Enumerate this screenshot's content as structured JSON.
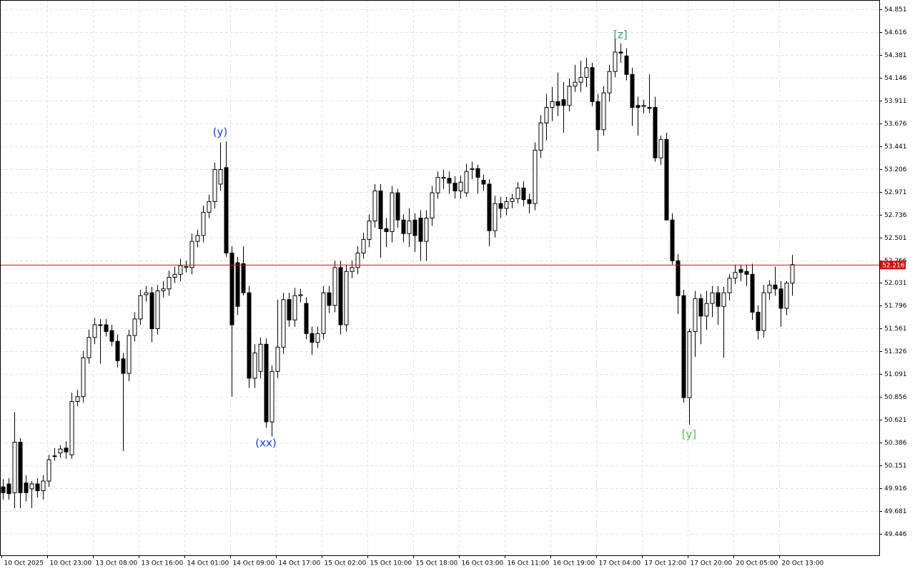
{
  "chart_data": {
    "type": "candlestick",
    "ylim": [
      49.225,
      54.947
    ],
    "yticks": [
      54.851,
      54.616,
      54.381,
      54.146,
      53.911,
      53.676,
      53.441,
      53.206,
      52.971,
      52.736,
      52.501,
      52.266,
      52.031,
      51.796,
      51.561,
      51.326,
      51.091,
      50.856,
      50.621,
      50.386,
      50.151,
      49.916,
      49.681,
      49.446
    ],
    "grid": true,
    "up_color": "#ffffff",
    "down_color": "#000000",
    "last_price": 52.216,
    "last_price_color": "#d01010",
    "annotations": [
      {
        "text": "(y)",
        "color": "#1a3fd6"
      },
      {
        "text": "(xx)",
        "color": "#1a3fd6"
      },
      {
        "text": "[z]",
        "color": "#2a9d6f"
      },
      {
        "text": "[y]",
        "color": "#4cc94c"
      }
    ],
    "categories": [
      "10 Oct 2025",
      null,
      null,
      null,
      null,
      null,
      null,
      null,
      "10 Oct 23:00",
      null,
      null,
      null,
      null,
      null,
      null,
      null,
      "13 Oct 08:00",
      null,
      null,
      null,
      null,
      null,
      null,
      null,
      "13 Oct 16:00",
      null,
      null,
      null,
      null,
      null,
      null,
      null,
      "14 Oct 01:00",
      null,
      null,
      null,
      null,
      null,
      null,
      null,
      "14 Oct 09:00",
      null,
      null,
      null,
      null,
      null,
      null,
      null,
      "14 Oct 17:00",
      null,
      null,
      null,
      null,
      null,
      null,
      null,
      "15 Oct 02:00",
      null,
      null,
      null,
      null,
      null,
      null,
      null,
      "15 Oct 10:00",
      null,
      null,
      null,
      null,
      null,
      null,
      null,
      "15 Oct 18:00",
      null,
      null,
      null,
      null,
      null,
      null,
      null,
      "16 Oct 03:00",
      null,
      null,
      null,
      null,
      null,
      null,
      null,
      "16 Oct 11:00",
      null,
      null,
      null,
      null,
      null,
      null,
      null,
      "16 Oct 19:00",
      null,
      null,
      null,
      null,
      null,
      null,
      null,
      "17 Oct 04:00",
      null,
      null,
      null,
      null,
      null,
      null,
      null,
      "17 Oct 12:00",
      null,
      null,
      null,
      null,
      null,
      null,
      null,
      "17 Oct 20:00",
      null,
      null,
      null,
      null,
      null,
      null,
      null,
      "20 Oct 05:00",
      null,
      null,
      null,
      null,
      null,
      null,
      null,
      "20 Oct 13:00",
      null,
      null
    ],
    "ohlc": [
      [
        49.93,
        50.01,
        49.8,
        49.87
      ],
      [
        49.96,
        50.02,
        49.8,
        49.86
      ],
      [
        49.87,
        50.7,
        49.71,
        50.39
      ],
      [
        50.39,
        50.43,
        49.71,
        49.87
      ],
      [
        49.97,
        50.05,
        49.78,
        49.87
      ],
      [
        49.91,
        49.99,
        49.71,
        49.96
      ],
      [
        49.96,
        50.02,
        49.82,
        49.89
      ],
      [
        49.89,
        50.05,
        49.8,
        49.99
      ],
      [
        49.99,
        50.26,
        49.93,
        50.21
      ],
      [
        50.25,
        50.33,
        50.2,
        50.25
      ],
      [
        50.28,
        50.36,
        50.23,
        50.32
      ],
      [
        50.33,
        50.4,
        50.22,
        50.29
      ],
      [
        50.26,
        50.9,
        50.22,
        50.81
      ],
      [
        50.81,
        50.93,
        50.76,
        50.86
      ],
      [
        50.86,
        51.33,
        50.8,
        51.26
      ],
      [
        51.26,
        51.55,
        51.2,
        51.47
      ],
      [
        51.47,
        51.67,
        51.4,
        51.6
      ],
      [
        51.6,
        51.66,
        51.2,
        51.6
      ],
      [
        51.6,
        51.66,
        51.48,
        51.53
      ],
      [
        51.54,
        51.6,
        51.38,
        51.43
      ],
      [
        51.43,
        51.5,
        51.16,
        51.23
      ],
      [
        51.25,
        51.31,
        50.3,
        51.1
      ],
      [
        51.1,
        51.55,
        51.02,
        51.49
      ],
      [
        51.49,
        51.73,
        51.43,
        51.66
      ],
      [
        51.66,
        51.96,
        51.6,
        51.9
      ],
      [
        51.91,
        52.0,
        51.84,
        51.93
      ],
      [
        51.93,
        51.99,
        51.42,
        51.56
      ],
      [
        51.56,
        52.01,
        51.5,
        51.95
      ],
      [
        51.95,
        52.05,
        51.88,
        51.97
      ],
      [
        51.97,
        52.16,
        51.9,
        52.09
      ],
      [
        52.09,
        52.2,
        52.03,
        52.12
      ],
      [
        52.12,
        52.28,
        52.05,
        52.21
      ],
      [
        52.19,
        52.26,
        52.14,
        52.2
      ],
      [
        52.19,
        52.54,
        52.12,
        52.46
      ],
      [
        52.46,
        52.58,
        52.4,
        52.52
      ],
      [
        52.52,
        52.83,
        52.45,
        52.76
      ],
      [
        52.76,
        52.94,
        52.7,
        52.87
      ],
      [
        52.87,
        53.27,
        52.8,
        53.2
      ],
      [
        53.05,
        53.48,
        52.98,
        53.2
      ],
      [
        53.22,
        53.49,
        52.3,
        52.34
      ],
      [
        52.34,
        52.41,
        50.86,
        51.6
      ],
      [
        52.24,
        52.3,
        51.7,
        51.79
      ],
      [
        52.23,
        52.41,
        51.9,
        51.93
      ],
      [
        51.93,
        52.0,
        50.95,
        51.05
      ],
      [
        51.05,
        51.4,
        50.95,
        51.31
      ],
      [
        51.12,
        51.47,
        51.05,
        51.4
      ],
      [
        51.4,
        51.46,
        50.54,
        50.6
      ],
      [
        50.6,
        51.18,
        50.45,
        51.12
      ],
      [
        51.12,
        51.86,
        51.05,
        51.37
      ],
      [
        51.37,
        51.93,
        51.3,
        51.86
      ],
      [
        51.86,
        51.93,
        51.58,
        51.65
      ],
      [
        51.65,
        51.98,
        51.58,
        51.9
      ],
      [
        51.9,
        51.97,
        51.83,
        51.91
      ],
      [
        51.82,
        51.88,
        51.45,
        51.51
      ],
      [
        51.51,
        51.58,
        51.29,
        51.42
      ],
      [
        51.42,
        51.58,
        51.36,
        51.51
      ],
      [
        51.51,
        52.0,
        51.45,
        51.93
      ],
      [
        51.93,
        52.0,
        51.72,
        51.8
      ],
      [
        51.8,
        52.26,
        51.73,
        52.19
      ],
      [
        52.19,
        52.26,
        51.5,
        51.6
      ],
      [
        51.6,
        52.22,
        51.53,
        52.15
      ],
      [
        52.15,
        52.26,
        52.08,
        52.19
      ],
      [
        52.19,
        52.41,
        52.12,
        52.34
      ],
      [
        52.34,
        52.55,
        52.28,
        52.48
      ],
      [
        52.48,
        52.74,
        52.4,
        52.67
      ],
      [
        52.67,
        53.05,
        52.6,
        52.98
      ],
      [
        52.98,
        53.05,
        52.29,
        52.59
      ],
      [
        52.59,
        52.7,
        52.4,
        52.56
      ],
      [
        52.56,
        53.03,
        52.45,
        52.96
      ],
      [
        52.96,
        53.0,
        52.6,
        52.68
      ],
      [
        52.68,
        52.74,
        52.45,
        52.54
      ],
      [
        52.54,
        52.8,
        52.4,
        52.67
      ],
      [
        52.68,
        52.75,
        52.35,
        52.52
      ],
      [
        52.7,
        52.78,
        52.26,
        52.46
      ],
      [
        52.46,
        52.78,
        52.26,
        52.7
      ],
      [
        52.7,
        53.03,
        52.62,
        52.96
      ],
      [
        52.96,
        53.18,
        52.9,
        53.12
      ],
      [
        53.11,
        53.2,
        53.0,
        53.12
      ],
      [
        53.11,
        53.18,
        52.95,
        53.06
      ],
      [
        53.06,
        53.13,
        52.9,
        52.98
      ],
      [
        52.98,
        53.14,
        52.9,
        53.07
      ],
      [
        52.96,
        53.26,
        52.92,
        53.18
      ],
      [
        53.2,
        53.28,
        53.1,
        53.21
      ],
      [
        53.21,
        53.25,
        52.95,
        53.12
      ],
      [
        53.09,
        53.15,
        52.98,
        53.05
      ],
      [
        53.05,
        53.1,
        52.41,
        52.57
      ],
      [
        52.57,
        52.93,
        52.5,
        52.85
      ],
      [
        52.85,
        52.92,
        52.7,
        52.8
      ],
      [
        52.8,
        52.92,
        52.73,
        52.87
      ],
      [
        52.87,
        52.95,
        52.8,
        52.9
      ],
      [
        52.9,
        53.07,
        52.85,
        53.01
      ],
      [
        53.01,
        53.08,
        52.82,
        52.89
      ],
      [
        52.89,
        52.95,
        52.75,
        52.85
      ],
      [
        52.85,
        53.48,
        52.78,
        53.4
      ],
      [
        53.4,
        53.76,
        53.32,
        53.68
      ],
      [
        53.68,
        53.98,
        53.5,
        53.84
      ],
      [
        53.84,
        54.05,
        53.7,
        53.9
      ],
      [
        53.9,
        54.2,
        53.75,
        53.86
      ],
      [
        53.92,
        54.1,
        53.58,
        53.86
      ],
      [
        53.86,
        54.14,
        53.8,
        54.06
      ],
      [
        54.06,
        54.28,
        54.0,
        54.1
      ],
      [
        54.1,
        54.32,
        54.0,
        54.15
      ],
      [
        54.15,
        54.35,
        54.05,
        54.25
      ],
      [
        54.25,
        54.3,
        53.85,
        53.9
      ],
      [
        53.9,
        53.98,
        53.39,
        53.61
      ],
      [
        53.61,
        54.06,
        53.55,
        53.99
      ],
      [
        53.99,
        54.28,
        53.9,
        54.21
      ],
      [
        54.21,
        54.54,
        54.15,
        54.41
      ],
      [
        54.41,
        54.5,
        54.3,
        54.4
      ],
      [
        54.37,
        54.45,
        54.12,
        54.18
      ],
      [
        54.18,
        54.25,
        53.65,
        53.84
      ],
      [
        53.86,
        53.95,
        53.55,
        53.84
      ],
      [
        53.85,
        53.92,
        53.78,
        53.86
      ],
      [
        53.84,
        54.18,
        53.78,
        53.83
      ],
      [
        53.84,
        53.95,
        53.28,
        53.32
      ],
      [
        53.32,
        53.55,
        53.25,
        53.51
      ],
      [
        53.51,
        53.58,
        52.68,
        52.68
      ],
      [
        52.68,
        52.75,
        52.22,
        52.26
      ],
      [
        52.26,
        52.33,
        51.71,
        51.9
      ],
      [
        51.9,
        51.96,
        50.8,
        50.85
      ],
      [
        50.85,
        51.56,
        50.57,
        51.53
      ],
      [
        51.53,
        51.95,
        51.27,
        51.87
      ],
      [
        51.87,
        51.92,
        51.4,
        51.69
      ],
      [
        51.69,
        51.95,
        51.55,
        51.82
      ],
      [
        51.82,
        52.0,
        51.68,
        51.93
      ],
      [
        51.93,
        52.0,
        51.6,
        51.79
      ],
      [
        51.79,
        51.99,
        51.26,
        51.93
      ],
      [
        51.93,
        52.12,
        51.85,
        52.08
      ],
      [
        52.08,
        52.22,
        52.02,
        52.14
      ],
      [
        52.17,
        52.22,
        52.05,
        52.14
      ],
      [
        52.15,
        52.22,
        52.0,
        52.12
      ],
      [
        52.12,
        52.23,
        51.65,
        51.73
      ],
      [
        51.73,
        51.8,
        51.45,
        51.54
      ],
      [
        51.54,
        52.01,
        51.47,
        51.93
      ],
      [
        51.93,
        52.06,
        51.86,
        52.01
      ],
      [
        52.01,
        52.2,
        51.9,
        51.97
      ],
      [
        51.97,
        52.05,
        51.58,
        51.77
      ],
      [
        51.77,
        52.05,
        51.7,
        52.03
      ],
      [
        52.03,
        52.32,
        51.9,
        52.22
      ]
    ]
  }
}
